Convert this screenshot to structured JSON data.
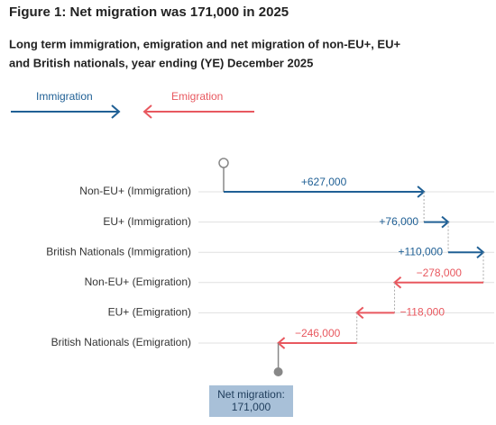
{
  "chart_data": {
    "type": "waterfall-arrows",
    "title": "Figure 1: Net migration was 171,000 in 2025",
    "subtitle": [
      "Long term immigration, emigration and net migration of non-EU+, EU+",
      "and British nationals, year ending (YE) December 2025"
    ],
    "series": [
      {
        "name": "Immigration",
        "color": "#206095"
      },
      {
        "name": "Emigration",
        "color": "#e8585f"
      }
    ],
    "categories": [
      "Non-EU+ (Immigration)",
      "EU+ (Immigration)",
      "British Nationals (Immigration)",
      "Non-EU+ (Emigration)",
      "EU+ (Emigration)",
      "British Nationals (Emigration)"
    ],
    "values": [
      627000,
      76000,
      110000,
      -278000,
      -118000,
      -246000
    ],
    "value_labels": [
      "+627,000",
      "+76,000",
      "+110,000",
      "−278,000",
      "−118,000",
      "−246,000"
    ],
    "net": {
      "label": "Net migration:",
      "value": 171000,
      "value_label": "171,000"
    },
    "grid": true
  }
}
